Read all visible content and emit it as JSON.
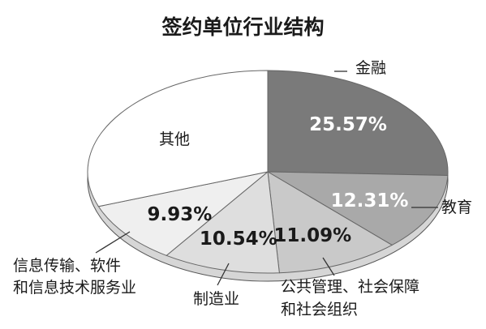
{
  "chart_data": {
    "type": "pie",
    "title": "签约单位行业结构",
    "slices": [
      {
        "label": "金融",
        "value": 25.57,
        "value_label": "25.57%",
        "color": "#7a7a7a",
        "text_color": "#ffffff"
      },
      {
        "label": "教育",
        "value": 12.31,
        "value_label": "12.31%",
        "color": "#a9a9a9",
        "text_color": "#ffffff"
      },
      {
        "label": "公共管理、社会保障和社会组织",
        "label_lines": [
          "公共管理、社会保障",
          "和社会组织"
        ],
        "value": 11.09,
        "value_label": "11.09%",
        "color": "#c9c9c9",
        "text_color": "#1a1a1a"
      },
      {
        "label": "制造业",
        "value": 10.54,
        "value_label": "10.54%",
        "color": "#dedede",
        "text_color": "#1a1a1a"
      },
      {
        "label": "信息传输、软件和信息技术服务业",
        "label_lines": [
          "信息传输、软件",
          "和信息技术服务业"
        ],
        "value": 9.93,
        "value_label": "9.93%",
        "color": "#efefef",
        "text_color": "#1a1a1a"
      },
      {
        "label": "其他",
        "value": 30.56,
        "value_label": "",
        "color": "#ffffff",
        "text_color": "#1a1a1a"
      }
    ]
  }
}
